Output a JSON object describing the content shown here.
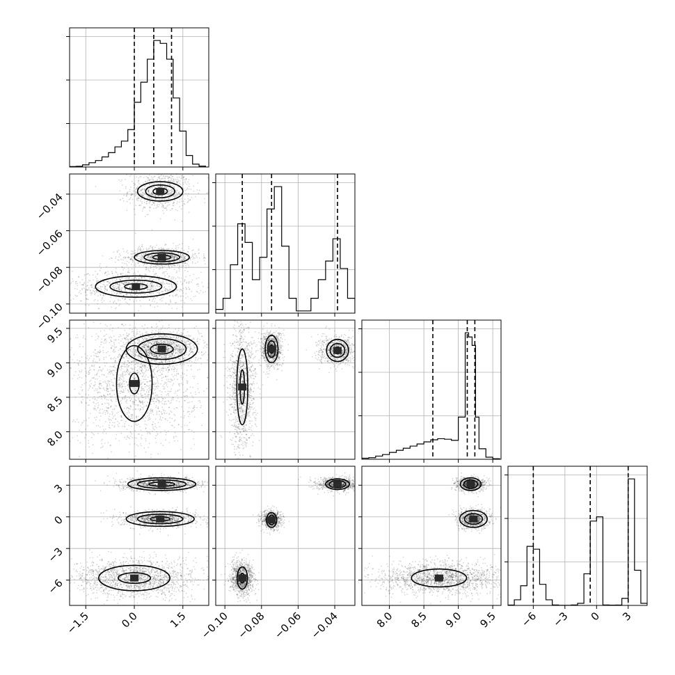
{
  "chart_data": {
    "type": "corner",
    "grid": true,
    "params": [
      {
        "range": [
          -2.0,
          2.3
        ],
        "ticks": [
          -1.5,
          0.0,
          1.5
        ],
        "tick_labels": [
          "−1.5",
          "0.0",
          "1.5"
        ],
        "quantiles": [
          0.0,
          0.6,
          1.15
        ]
      },
      {
        "range": [
          -0.105,
          -0.029
        ],
        "ticks": [
          -0.1,
          -0.08,
          -0.06,
          -0.04
        ],
        "tick_labels": [
          "−0.10",
          "−0.08",
          "−0.06",
          "−0.04"
        ],
        "quantiles": [
          -0.0905,
          -0.0745,
          -0.0385
        ]
      },
      {
        "range": [
          7.6,
          9.62
        ],
        "ticks": [
          8.0,
          8.5,
          9.0,
          9.5
        ],
        "tick_labels": [
          "8.0",
          "8.5",
          "9.0",
          "9.5"
        ],
        "quantiles": [
          8.63,
          9.13,
          9.24
        ]
      },
      {
        "range": [
          -8.4,
          4.8
        ],
        "ticks": [
          -6,
          -3,
          0,
          3
        ],
        "tick_labels": [
          "−6",
          "−3",
          "0",
          "3"
        ],
        "quantiles": [
          -6.0,
          -0.6,
          3.0
        ]
      }
    ],
    "histograms": [
      {
        "param": 0,
        "bin_edges": [
          -2.0,
          -1.8,
          -1.6,
          -1.4,
          -1.2,
          -1.0,
          -0.8,
          -0.6,
          -0.4,
          -0.2,
          0.0,
          0.2,
          0.4,
          0.6,
          0.8,
          1.0,
          1.2,
          1.4,
          1.6,
          1.8,
          2.0,
          2.2
        ],
        "counts": [
          0.3,
          0.5,
          1.5,
          3,
          4.5,
          7,
          10,
          14,
          18,
          26,
          45,
          59,
          75,
          88,
          86,
          75,
          48,
          25,
          8,
          2,
          0.6
        ]
      },
      {
        "param": 1,
        "bin_edges": [
          -0.105,
          -0.101,
          -0.097,
          -0.093,
          -0.089,
          -0.085,
          -0.081,
          -0.077,
          -0.073,
          -0.069,
          -0.065,
          -0.061,
          -0.057,
          -0.053,
          -0.049,
          -0.045,
          -0.041,
          -0.037,
          -0.033,
          -0.029
        ],
        "counts": [
          5,
          20,
          65,
          120,
          95,
          45,
          75,
          140,
          170,
          90,
          20,
          3,
          3,
          20,
          45,
          70,
          100,
          60,
          20
        ]
      },
      {
        "param": 2,
        "bin_edges": [
          7.6,
          7.7,
          7.8,
          7.9,
          8.0,
          8.1,
          8.2,
          8.3,
          8.4,
          8.5,
          8.6,
          8.7,
          8.8,
          8.9,
          9.0,
          9.1,
          9.15,
          9.2,
          9.25,
          9.3,
          9.4,
          9.5,
          9.6
        ],
        "counts": [
          1,
          1.5,
          3,
          4.5,
          6.5,
          8.5,
          10.5,
          12.5,
          14.5,
          16.5,
          18.5,
          19.5,
          19,
          18,
          40,
          120,
          116,
          108,
          40,
          10,
          2,
          0.5
        ]
      },
      {
        "param": 3,
        "bin_edges": [
          -8.4,
          -7.8,
          -7.2,
          -6.6,
          -6.0,
          -5.4,
          -4.8,
          -4.2,
          -3.6,
          -3.0,
          -2.4,
          -1.8,
          -1.2,
          -0.6,
          0.0,
          0.6,
          1.2,
          1.8,
          2.4,
          3.0,
          3.6,
          4.2,
          4.8
        ],
        "counts": [
          0.5,
          8,
          28,
          84,
          80,
          30,
          8,
          0.6,
          0.2,
          0.2,
          0.6,
          3,
          45,
          120,
          126,
          0.6,
          0.4,
          0.5,
          10,
          180,
          50,
          3
        ]
      }
    ],
    "pairs": [
      {
        "x_param": 0,
        "y_param": 1,
        "clusters": [
          {
            "center": [
              0.8,
              -0.0385
            ],
            "sd": [
              0.38,
              0.0042
            ],
            "n": 700,
            "levels": [
              [
                0.7,
                0.0053
              ],
              [
                0.45,
                0.0035
              ],
              [
                0.22,
                0.0018
              ]
            ]
          },
          {
            "center": [
              0.85,
              -0.0745
            ],
            "sd": [
              0.45,
              0.0022
            ],
            "n": 800,
            "levels": [
              [
                0.85,
                0.0037
              ],
              [
                0.55,
                0.0024
              ],
              [
                0.28,
                0.0012
              ]
            ]
          },
          {
            "center": [
              0.05,
              -0.0905
            ],
            "sd": [
              0.75,
              0.0035
            ],
            "n": 900,
            "levels": [
              [
                1.25,
                0.0058
              ],
              [
                0.8,
                0.0035
              ],
              [
                0.35,
                0.0016
              ]
            ]
          }
        ]
      },
      {
        "x_param": 0,
        "y_param": 2,
        "clusters": [
          {
            "center": [
              0.85,
              9.2
            ],
            "sd": [
              0.45,
              0.09
            ],
            "n": 1200,
            "levels": [
              [
                1.1,
                0.22
              ],
              [
                0.75,
                0.15
              ],
              [
                0.35,
                0.07
              ]
            ]
          },
          {
            "center": [
              0.0,
              8.7
            ],
            "sd": [
              0.75,
              0.35
            ],
            "n": 1800,
            "levels": [
              [
                0.55,
                0.55
              ],
              [
                0.15,
                0.15
              ]
            ]
          }
        ]
      },
      {
        "x_param": 1,
        "y_param": 2,
        "clusters": [
          {
            "center": [
              -0.0745,
              9.2
            ],
            "sd": [
              0.0022,
              0.1
            ],
            "n": 900,
            "levels": [
              [
                0.0035,
                0.2
              ],
              [
                0.0022,
                0.12
              ],
              [
                0.001,
                0.06
              ]
            ]
          },
          {
            "center": [
              -0.0385,
              9.18
            ],
            "sd": [
              0.004,
              0.08
            ],
            "n": 700,
            "levels": [
              [
                0.006,
                0.16
              ],
              [
                0.004,
                0.1
              ],
              [
                0.002,
                0.05
              ]
            ]
          },
          {
            "center": [
              -0.0905,
              8.65
            ],
            "sd": [
              0.0028,
              0.35
            ],
            "n": 1200,
            "levels": [
              [
                0.003,
                0.55
              ],
              [
                0.0012,
                0.25
              ]
            ]
          }
        ]
      },
      {
        "x_param": 0,
        "y_param": 3,
        "clusters": [
          {
            "center": [
              0.85,
              3.1
            ],
            "sd": [
              0.5,
              0.25
            ],
            "n": 900,
            "levels": [
              [
                1.05,
                0.6
              ],
              [
                0.75,
                0.4
              ],
              [
                0.4,
                0.2
              ]
            ]
          },
          {
            "center": [
              0.8,
              -0.2
            ],
            "sd": [
              0.45,
              0.3
            ],
            "n": 900,
            "levels": [
              [
                1.05,
                0.7
              ],
              [
                0.7,
                0.45
              ],
              [
                0.3,
                0.2
              ]
            ]
          },
          {
            "center": [
              0.0,
              -5.8
            ],
            "sd": [
              0.8,
              0.7
            ],
            "n": 1600,
            "levels": [
              [
                1.1,
                1.2
              ],
              [
                0.5,
                0.5
              ]
            ]
          }
        ]
      },
      {
        "x_param": 1,
        "y_param": 3,
        "clusters": [
          {
            "center": [
              -0.0385,
              3.1
            ],
            "sd": [
              0.0045,
              0.25
            ],
            "n": 800,
            "levels": [
              [
                0.0065,
                0.5
              ],
              [
                0.0045,
                0.35
              ],
              [
                0.002,
                0.2
              ]
            ]
          },
          {
            "center": [
              -0.0745,
              -0.3
            ],
            "sd": [
              0.0022,
              0.35
            ],
            "n": 700,
            "levels": [
              [
                0.0028,
                0.7
              ],
              [
                0.0018,
                0.45
              ],
              [
                0.0008,
                0.25
              ]
            ]
          },
          {
            "center": [
              -0.0905,
              -5.8
            ],
            "sd": [
              0.0025,
              0.6
            ],
            "n": 1000,
            "levels": [
              [
                0.0028,
                1.05
              ],
              [
                0.0012,
                0.45
              ]
            ]
          }
        ]
      },
      {
        "x_param": 2,
        "y_param": 3,
        "clusters": [
          {
            "center": [
              9.18,
              3.1
            ],
            "sd": [
              0.08,
              0.25
            ],
            "n": 800,
            "levels": [
              [
                0.15,
                0.6
              ],
              [
                0.1,
                0.4
              ],
              [
                0.05,
                0.2
              ]
            ]
          },
          {
            "center": [
              9.22,
              -0.2
            ],
            "sd": [
              0.09,
              0.35
            ],
            "n": 800,
            "levels": [
              [
                0.2,
                0.8
              ],
              [
                0.13,
                0.5
              ],
              [
                0.05,
                0.2
              ]
            ]
          },
          {
            "center": [
              8.72,
              -5.8
            ],
            "sd": [
              0.35,
              0.6
            ],
            "n": 1600,
            "levels": [
              [
                0.4,
                0.85
              ],
              [
                0.06,
                0.2
              ]
            ]
          }
        ]
      }
    ]
  }
}
